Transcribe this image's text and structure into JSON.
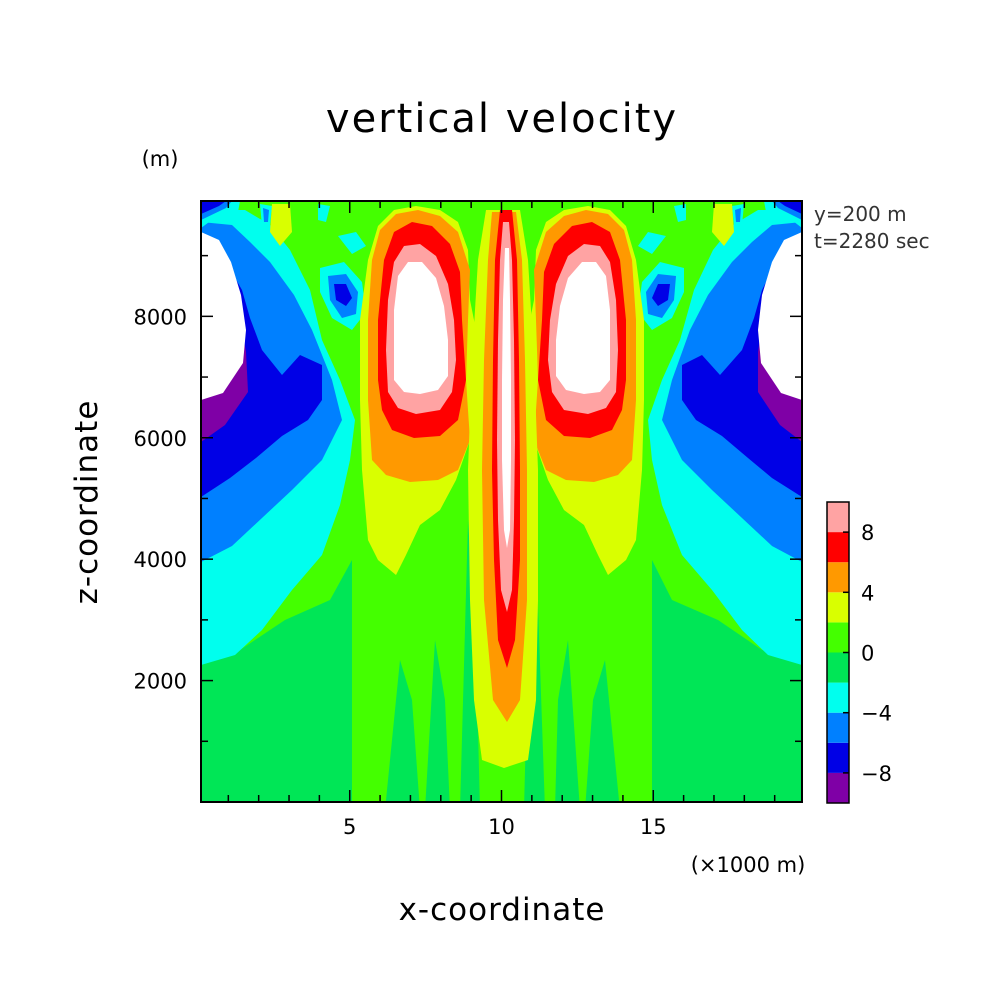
{
  "chart_data": {
    "type": "heatmap",
    "subtype": "filled-contour",
    "title": "vertical velocity",
    "xlabel": "x-coordinate",
    "ylabel": "z-coordinate",
    "x_unit_label": "(×1000 m)",
    "y_unit_label": "(m)",
    "annotations": [
      "y=200 m",
      "t=2280 sec"
    ],
    "xlim": [
      0.1,
      19.9
    ],
    "ylim": [
      0,
      9900
    ],
    "x_ticks": [
      5,
      10,
      15
    ],
    "x_tick_labels": [
      "5",
      "10",
      "15"
    ],
    "y_ticks": [
      2000,
      4000,
      6000,
      8000
    ],
    "y_tick_labels": [
      "2000",
      "4000",
      "6000",
      "8000"
    ],
    "colorbar": {
      "levels": [
        -10,
        -8,
        -6,
        -4,
        -2,
        0,
        2,
        4,
        6,
        8,
        10
      ],
      "tick_values": [
        -8,
        -4,
        0,
        4,
        8
      ],
      "tick_labels": [
        "−8",
        "−4",
        "0",
        "4",
        "8"
      ],
      "colors": [
        "#7f00a6",
        "#0000e6",
        "#0080ff",
        "#00ffee",
        "#00e656",
        "#44ff00",
        "#d9ff00",
        "#ff9900",
        "#ff0000",
        "#ffa3a3"
      ],
      "above_max_color": "#ffffff"
    },
    "legend_position": "right",
    "grid": false
  }
}
